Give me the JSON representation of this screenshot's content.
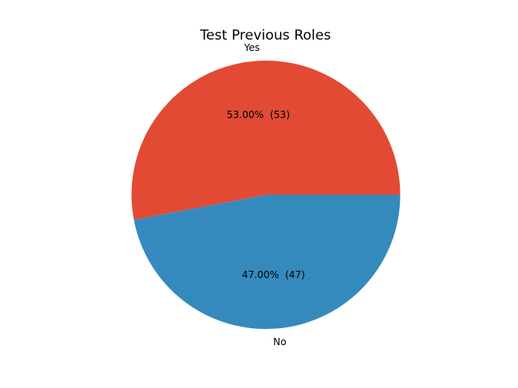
{
  "chart_data": {
    "type": "pie",
    "title": "Test Previous Roles",
    "categories": [
      "Yes",
      "No"
    ],
    "values": [
      53,
      47
    ],
    "percent_labels": [
      "53.00%  (53)",
      "47.00%  (47)"
    ],
    "colors": [
      "#E24A33",
      "#348ABD"
    ],
    "start_angle_deg": 0,
    "direction": "counterclockwise",
    "legend": "none"
  }
}
